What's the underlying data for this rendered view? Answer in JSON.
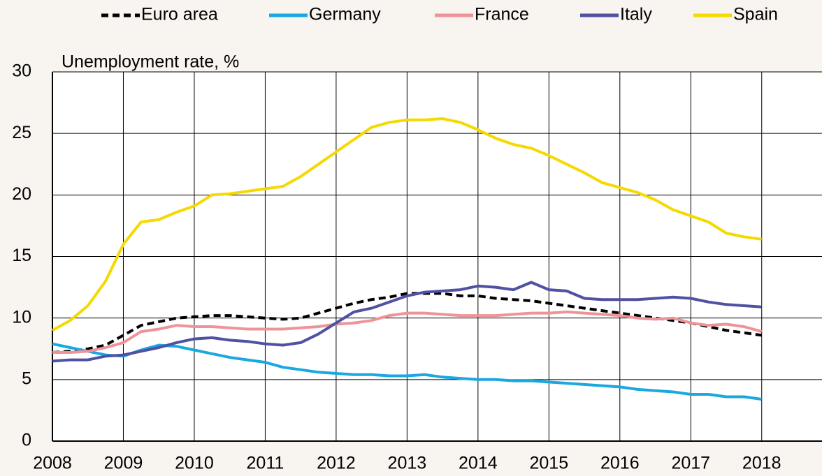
{
  "chart_data": {
    "type": "line",
    "ylabel": "Unemployment rate, %",
    "x": [
      2008,
      2008.25,
      2008.5,
      2008.75,
      2009,
      2009.25,
      2009.5,
      2009.75,
      2010,
      2010.25,
      2010.5,
      2010.75,
      2011,
      2011.25,
      2011.5,
      2011.75,
      2012,
      2012.25,
      2012.5,
      2012.75,
      2013,
      2013.25,
      2013.5,
      2013.75,
      2014,
      2014.25,
      2014.5,
      2014.75,
      2015,
      2015.25,
      2015.5,
      2015.75,
      2016,
      2016.25,
      2016.5,
      2016.75,
      2017,
      2017.25,
      2017.5,
      2017.75,
      2018
    ],
    "series": [
      {
        "name": "Euro area",
        "color": "#000000",
        "dashed": true,
        "values": [
          7.2,
          7.3,
          7.5,
          7.8,
          8.6,
          9.4,
          9.7,
          10.0,
          10.1,
          10.2,
          10.2,
          10.1,
          10.0,
          9.9,
          10.0,
          10.4,
          10.8,
          11.2,
          11.5,
          11.7,
          12.0,
          12.0,
          12.0,
          11.8,
          11.8,
          11.6,
          11.5,
          11.4,
          11.2,
          11.0,
          10.8,
          10.6,
          10.4,
          10.2,
          10.0,
          9.8,
          9.6,
          9.3,
          9.0,
          8.8,
          8.6
        ]
      },
      {
        "name": "Germany",
        "color": "#1ba8e0",
        "values": [
          7.9,
          7.6,
          7.3,
          7.0,
          6.9,
          7.4,
          7.8,
          7.7,
          7.4,
          7.1,
          6.8,
          6.6,
          6.4,
          6.0,
          5.8,
          5.6,
          5.5,
          5.4,
          5.4,
          5.3,
          5.3,
          5.4,
          5.2,
          5.1,
          5.0,
          5.0,
          4.9,
          4.9,
          4.8,
          4.7,
          4.6,
          4.5,
          4.4,
          4.2,
          4.1,
          4.0,
          3.8,
          3.8,
          3.6,
          3.6,
          3.4
        ]
      },
      {
        "name": "France",
        "color": "#ee9499",
        "values": [
          7.2,
          7.2,
          7.3,
          7.6,
          8.0,
          8.9,
          9.1,
          9.4,
          9.3,
          9.3,
          9.2,
          9.1,
          9.1,
          9.1,
          9.2,
          9.3,
          9.5,
          9.6,
          9.8,
          10.2,
          10.4,
          10.4,
          10.3,
          10.2,
          10.2,
          10.2,
          10.3,
          10.4,
          10.4,
          10.5,
          10.4,
          10.3,
          10.2,
          10.0,
          9.9,
          10.0,
          9.6,
          9.4,
          9.5,
          9.3,
          8.9
        ]
      },
      {
        "name": "Italy",
        "color": "#4f51a3",
        "values": [
          6.5,
          6.6,
          6.6,
          6.9,
          7.0,
          7.3,
          7.6,
          8.0,
          8.3,
          8.4,
          8.2,
          8.1,
          7.9,
          7.8,
          8.0,
          8.7,
          9.6,
          10.5,
          10.8,
          11.3,
          11.8,
          12.1,
          12.2,
          12.3,
          12.6,
          12.5,
          12.3,
          12.9,
          12.3,
          12.2,
          11.6,
          11.5,
          11.5,
          11.5,
          11.6,
          11.7,
          11.6,
          11.3,
          11.1,
          11.0,
          10.9
        ]
      },
      {
        "name": "Spain",
        "color": "#f6d900",
        "values": [
          9.0,
          9.8,
          11.0,
          13.0,
          16.0,
          17.8,
          18.0,
          18.6,
          19.1,
          20.0,
          20.1,
          20.3,
          20.5,
          20.7,
          21.5,
          22.5,
          23.5,
          24.5,
          25.5,
          25.9,
          26.1,
          26.1,
          26.2,
          25.9,
          25.3,
          24.6,
          24.1,
          23.8,
          23.2,
          22.5,
          21.8,
          21.0,
          20.6,
          20.2,
          19.6,
          18.8,
          18.3,
          17.8,
          16.9,
          16.6,
          16.4
        ]
      }
    ],
    "xlim": [
      2008,
      2018.85
    ],
    "xticks": [
      2008,
      2009,
      2010,
      2011,
      2012,
      2013,
      2014,
      2015,
      2016,
      2017,
      2018
    ],
    "ylim": [
      0,
      30
    ],
    "yticks": [
      0,
      5,
      10,
      15,
      20,
      25,
      30
    ],
    "grid": true
  }
}
